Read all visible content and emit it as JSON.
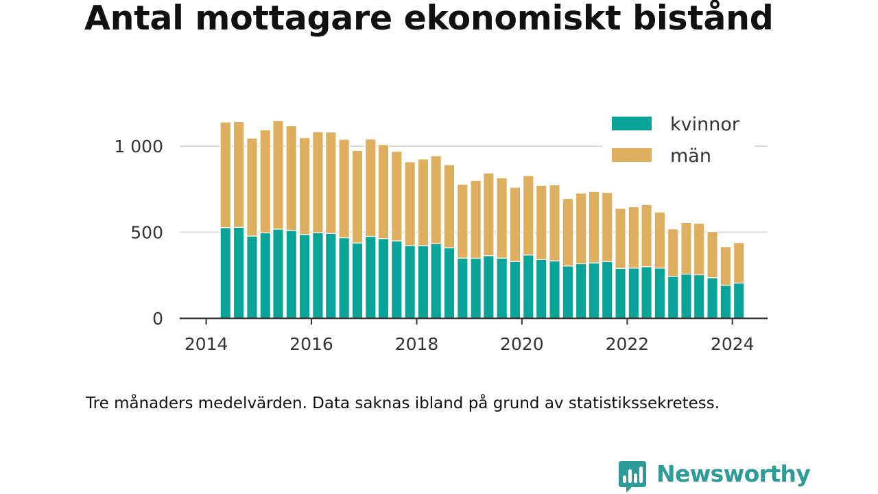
{
  "title": "Antal mottagare ekonomiskt bistånd",
  "footnote": "Tre månaders medelvärden. Data saknas ibland på grund av statistikssekretess.",
  "brand": {
    "name": "Newsworthy",
    "color": "#2d9c98",
    "icon": "newsworthy-logo-icon"
  },
  "chart_data": {
    "type": "bar",
    "stacked": true,
    "x_axis": "date",
    "x": [
      "2014-05-15",
      "2014-08-15",
      "2014-11-15",
      "2015-02-15",
      "2015-05-15",
      "2015-08-15",
      "2015-11-15",
      "2016-02-15",
      "2016-05-15",
      "2016-08-15",
      "2016-11-15",
      "2017-02-15",
      "2017-05-15",
      "2017-08-15",
      "2017-11-15",
      "2018-02-15",
      "2018-05-15",
      "2018-08-15",
      "2018-11-15",
      "2019-02-15",
      "2019-05-15",
      "2019-08-15",
      "2019-11-15",
      "2020-02-15",
      "2020-05-15",
      "2020-08-15",
      "2020-11-15",
      "2021-02-15",
      "2021-05-15",
      "2021-08-15",
      "2021-11-15",
      "2022-02-15",
      "2022-05-15",
      "2022-08-15",
      "2022-11-15",
      "2023-02-15",
      "2023-05-15",
      "2023-08-15",
      "2023-11-15",
      "2024-02-15"
    ],
    "series": [
      {
        "name": "kvinnor",
        "color": "#0aa398",
        "values": [
          527,
          529,
          478,
          497,
          518,
          510,
          487,
          497,
          493,
          468,
          438,
          476,
          463,
          450,
          423,
          422,
          433,
          410,
          350,
          349,
          364,
          350,
          330,
          368,
          341,
          334,
          304,
          317,
          322,
          330,
          290,
          292,
          300,
          292,
          244,
          257,
          253,
          236,
          192,
          205
        ]
      },
      {
        "name": "män",
        "color": "#deaf5e",
        "values": [
          613,
          613,
          568,
          597,
          631,
          608,
          562,
          587,
          589,
          572,
          537,
          565,
          546,
          520,
          486,
          503,
          511,
          482,
          428,
          451,
          480,
          466,
          431,
          461,
          431,
          441,
          392,
          410,
          414,
          401,
          349,
          356,
          360,
          325,
          275,
          299,
          299,
          268,
          224,
          235
        ]
      }
    ],
    "y_ticks": [
      0,
      500,
      1000
    ],
    "y_tick_labels": [
      "0",
      "500",
      "1 000"
    ],
    "x_ticks": [
      "2014",
      "2016",
      "2018",
      "2020",
      "2022",
      "2024"
    ],
    "ylim": [
      0,
      1150
    ],
    "xlim": [
      "2013-07-01",
      "2024-09-01"
    ],
    "grid": true,
    "legend": {
      "position": "top-right",
      "labels": [
        "kvinnor",
        "män"
      ]
    }
  }
}
